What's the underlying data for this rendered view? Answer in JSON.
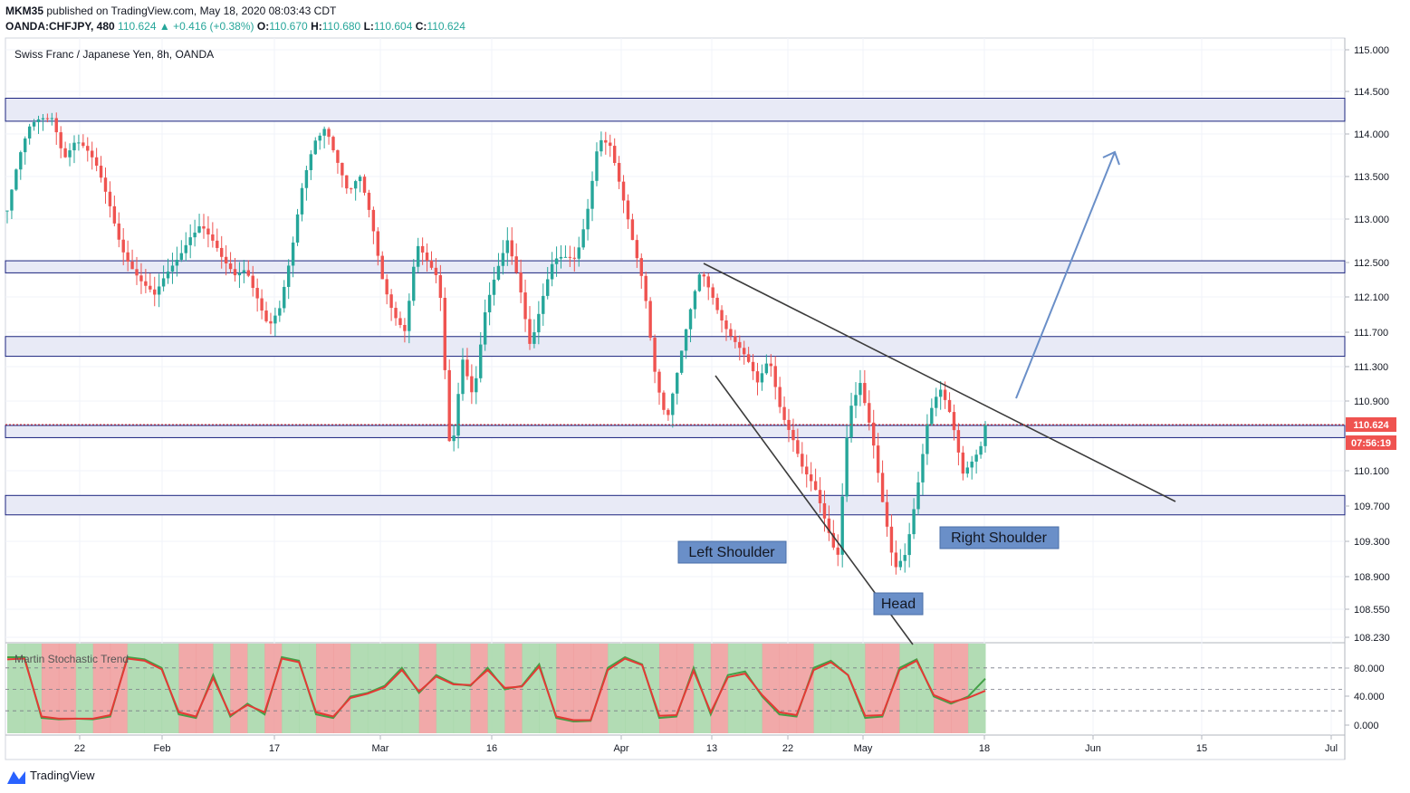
{
  "header": {
    "line1_user": "MKM35",
    "line1_rest": "published on TradingView.com, May 18, 2020 08:03:43 CDT",
    "symbol": "OANDA:CHFJPY, 480",
    "last": "110.624",
    "change": "+0.416 (+0.38%)",
    "o_label": "O:",
    "o_val": "110.670",
    "h_label": "H:",
    "h_val": "110.680",
    "l_label": "L:",
    "l_val": "110.604",
    "c_label": "C:",
    "c_val": "110.624"
  },
  "legend_title": "Swiss Franc / Japanese Yen, 8h, OANDA",
  "price_badge": "110.624",
  "countdown_badge": "07:56:19",
  "annotations": {
    "left_shoulder": "Left Shoulder",
    "head": "Head",
    "right_shoulder": "Right Shoulder"
  },
  "indicator_title": "Martin Stochastic Trend",
  "footer_brand": "TradingView",
  "colors": {
    "up": "#26a69a",
    "down": "#ef5350",
    "zone_line": "#1a237e",
    "zone_fill": "#e8eaf6",
    "label_bg": "#6a8fc8",
    "arrow": "#6a8fc8",
    "bull_bg": "#a5d6a7",
    "bear_bg": "#ef9a9a"
  },
  "chart_data": [
    {
      "type": "candlestick",
      "title": "Swiss Franc / Japanese Yen, 8h, OANDA",
      "y_ticks": [
        "115.000",
        "114.500",
        "114.000",
        "113.500",
        "113.000",
        "112.500",
        "112.100",
        "111.700",
        "111.300",
        "110.900",
        "110.100",
        "109.700",
        "109.300",
        "108.900",
        "108.550",
        "108.230"
      ],
      "x_ticks": [
        "22",
        "Feb",
        "17",
        "Mar",
        "16",
        "Apr",
        "13",
        "22",
        "May",
        "18",
        "Jun",
        "15",
        "Jul"
      ],
      "last_price": 110.624,
      "support_resistance_zones": [
        [
          114.15,
          114.42
        ],
        [
          112.38,
          112.52
        ],
        [
          111.42,
          111.65
        ],
        [
          110.48,
          110.62
        ],
        [
          109.6,
          109.82
        ]
      ],
      "close_path": [
        113.1,
        113.6,
        114.0,
        114.2,
        114.3,
        113.8,
        113.9,
        113.7,
        113.5,
        113.2,
        112.8,
        112.5,
        112.2,
        112.0,
        112.3,
        112.6,
        112.9,
        113.0,
        112.7,
        112.4,
        112.3,
        112.5,
        112.2,
        111.8,
        111.9,
        112.5,
        113.4,
        114.0,
        114.2,
        113.7,
        113.2,
        113.4,
        113.0,
        112.4,
        112.0,
        111.7,
        112.6,
        112.4,
        112.3,
        110.3,
        111.5,
        110.9,
        111.8,
        112.3,
        112.8,
        112.4,
        111.6,
        112.0,
        112.4,
        112.5,
        112.6,
        113.2,
        114.0,
        113.8,
        113.2,
        112.7,
        112.3,
        111.3,
        110.7,
        111.2,
        111.8,
        112.4,
        112.2,
        111.9,
        111.6,
        111.3,
        111.0,
        111.4,
        110.9,
        110.6,
        110.1,
        109.8,
        109.4,
        109.1,
        110.9,
        111.2,
        110.5,
        109.6,
        108.9,
        109.2,
        110.0,
        110.8,
        111.0,
        110.6,
        110.0,
        110.3,
        110.62
      ],
      "pattern_labels": [
        "Left Shoulder",
        "Head",
        "Right Shoulder"
      ]
    },
    {
      "type": "line",
      "title": "Martin Stochastic Trend",
      "y_ticks": [
        "80.000",
        "40.000",
        "0.000"
      ],
      "ylim": [
        0,
        100
      ],
      "series": [
        {
          "values": [
            95,
            95,
            10,
            8,
            9,
            8,
            12,
            95,
            92,
            80,
            15,
            10,
            70,
            12,
            30,
            15,
            95,
            90,
            15,
            10,
            40,
            45,
            55,
            80,
            45,
            70,
            58,
            55,
            80,
            50,
            55,
            85,
            10,
            5,
            6,
            80,
            95,
            85,
            10,
            12,
            80,
            15,
            70,
            75,
            40,
            15,
            12,
            80,
            90,
            70,
            10,
            12,
            80,
            92,
            40,
            30,
            40,
            65
          ]
        },
        {
          "values": [
            92,
            93,
            12,
            9,
            9,
            9,
            14,
            93,
            90,
            78,
            18,
            12,
            66,
            14,
            28,
            18,
            93,
            88,
            18,
            12,
            38,
            44,
            53,
            77,
            47,
            68,
            57,
            56,
            77,
            52,
            54,
            82,
            12,
            7,
            7,
            77,
            93,
            84,
            13,
            14,
            76,
            18,
            67,
            72,
            42,
            18,
            14,
            77,
            88,
            70,
            13,
            14,
            77,
            90,
            42,
            32,
            38,
            48
          ]
        }
      ]
    }
  ]
}
